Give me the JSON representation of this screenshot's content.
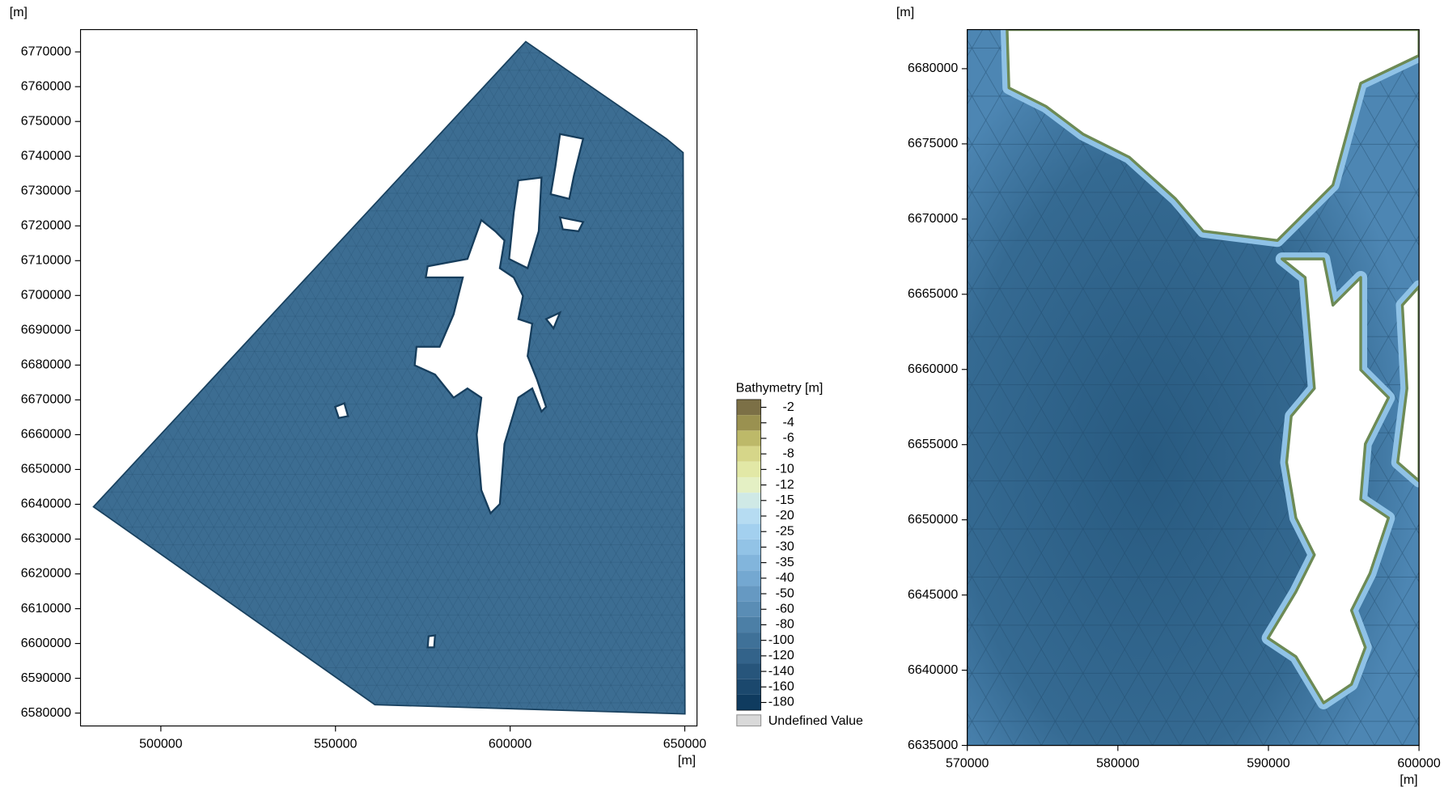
{
  "panels": [
    {
      "y_unit": "[m]",
      "x_unit": "[m]",
      "xlim": [
        477000,
        653500
      ],
      "ylim": [
        6576300,
        6776400
      ],
      "xticks": [
        500000,
        550000,
        600000,
        650000
      ],
      "yticks": [
        6580000,
        6590000,
        6600000,
        6610000,
        6620000,
        6630000,
        6640000,
        6650000,
        6660000,
        6670000,
        6680000,
        6690000,
        6700000,
        6710000,
        6720000,
        6730000,
        6740000,
        6750000,
        6760000,
        6770000
      ]
    },
    {
      "y_unit": "[m]",
      "x_unit": "[m]",
      "xlim": [
        570000,
        600000
      ],
      "ylim": [
        6635000,
        6682600
      ],
      "xticks": [
        570000,
        580000,
        590000,
        600000
      ],
      "yticks": [
        6635000,
        6640000,
        6645000,
        6650000,
        6655000,
        6660000,
        6665000,
        6670000,
        6675000,
        6680000
      ]
    }
  ],
  "legend": {
    "title": "Bathymetry [m]",
    "levels": [
      -2,
      -4,
      -6,
      -8,
      -10,
      -12,
      -15,
      -20,
      -25,
      -30,
      -35,
      -40,
      -50,
      -60,
      -80,
      -100,
      -120,
      -140,
      -160,
      -180
    ],
    "colors": [
      "#7c7046",
      "#9a9150",
      "#bdb969",
      "#d6d689",
      "#e2e8a6",
      "#e4f0c4",
      "#cfe9e6",
      "#b6dcf2",
      "#a3d0ef",
      "#92c3e6",
      "#82b5dc",
      "#74a8d1",
      "#6699c2",
      "#5a8db5",
      "#4c7fa6",
      "#3f7198",
      "#33638a",
      "#27557b",
      "#1b486d",
      "#0f3b5f"
    ],
    "undefined_label": "Undefined Value",
    "undefined_color": "#d9d9d9"
  }
}
